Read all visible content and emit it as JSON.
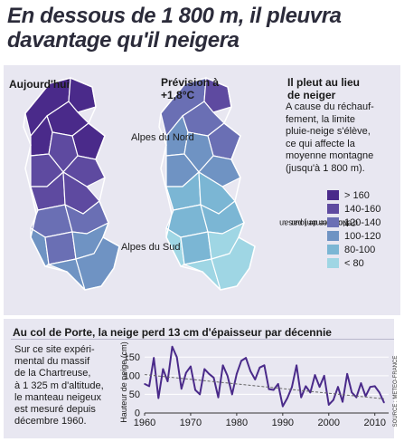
{
  "headline": "En dessous de 1 800 m, il pleuvra davantage qu'il neigera",
  "maps": {
    "today_label": "Aujourd'hui",
    "forecast_label_line1": "Prévision à",
    "forecast_label_line2": "+1,8°C",
    "region_north": "Alpes du Nord",
    "region_south": "Alpes du Sud"
  },
  "sidebar": {
    "title_line1": "Il pleut au lieu",
    "title_line2": "de neiger",
    "text_lines": [
      "A cause du réchauf-",
      "fement, la limite",
      "pluie-neige s'élève,",
      "ce qui affecte la",
      "moyenne montagne",
      "(jusqu'à 1 800 m)."
    ]
  },
  "legend": {
    "axis_label_line1": "Nombre de jours",
    "axis_label_line2": "d'enneigement par an",
    "items": [
      {
        "label": "> 160",
        "color": "#4a2a8a"
      },
      {
        "label": "140-160",
        "color": "#5e4aa0"
      },
      {
        "label": "120-140",
        "color": "#6a6fb4"
      },
      {
        "label": "100-120",
        "color": "#6f93c3"
      },
      {
        "label": "80-100",
        "color": "#7bb6d4"
      },
      {
        "label": "< 80",
        "color": "#9fd6e4"
      }
    ]
  },
  "subtitle": "Au col de Porte, la neige perd 13 cm d'épaisseur par décennie",
  "description_lines": [
    "Sur ce site expéri-",
    "mental du massif",
    "de la Chartreuse,",
    "à 1 325 m d'altitude,",
    "le manteau neigeux",
    "est mesuré depuis",
    "décembre 1960."
  ],
  "source": "SOURCE : METEO-FRANCE",
  "chart_data": {
    "type": "line",
    "ylabel": "Hauteur de neige (cm)",
    "xlim": [
      1960,
      2013
    ],
    "ylim": [
      0,
      175
    ],
    "xticks": [
      1960,
      1970,
      1980,
      1990,
      2000,
      2010
    ],
    "yticks": [
      0,
      50,
      100,
      150
    ],
    "series": [
      {
        "x": [
          1960,
          1961,
          1962,
          1963,
          1964,
          1965,
          1966,
          1967,
          1968,
          1969,
          1970,
          1971,
          1972,
          1973,
          1974,
          1975,
          1976,
          1977,
          1978,
          1979,
          1980,
          1981,
          1982,
          1983,
          1984,
          1985,
          1986,
          1987,
          1988,
          1989,
          1990,
          1991,
          1992,
          1993,
          1994,
          1995,
          1996,
          1997,
          1998,
          1999,
          2000,
          2001,
          2002,
          2003,
          2004,
          2005,
          2006,
          2007,
          2008,
          2009,
          2010,
          2011,
          2012
        ],
        "values": [
          78,
          72,
          148,
          40,
          118,
          85,
          178,
          150,
          65,
          108,
          125,
          62,
          50,
          118,
          105,
          95,
          42,
          128,
          100,
          50,
          105,
          140,
          148,
          112,
          90,
          122,
          128,
          64,
          62,
          78,
          18,
          40,
          70,
          128,
          42,
          72,
          55,
          102,
          70,
          100,
          22,
          35,
          70,
          30,
          105,
          55,
          42,
          80,
          45,
          70,
          72,
          55,
          28
        ],
        "color": "#4a2a8a"
      }
    ],
    "trend": {
      "x": [
        1960,
        2012
      ],
      "values": [
        103,
        38
      ]
    }
  }
}
